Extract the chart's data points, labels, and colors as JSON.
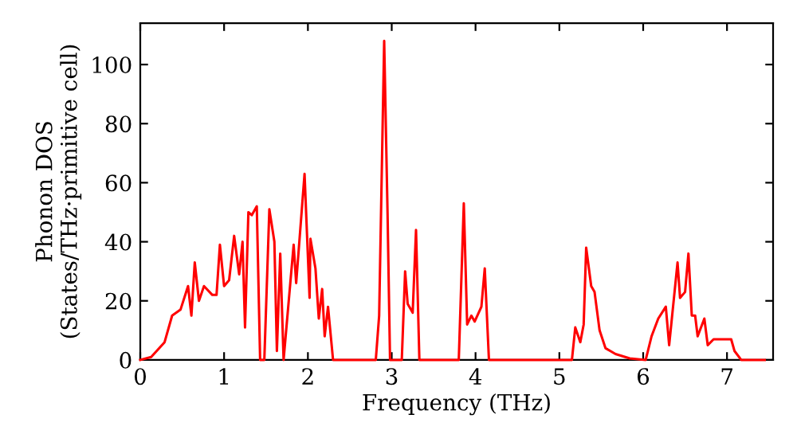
{
  "chart_data": {
    "type": "line",
    "xlabel": "Frequency (THz)",
    "ylabel": "Phonon DOS\n(States/THz·primitive cell)",
    "xlim": [
      0,
      7.55
    ],
    "ylim": [
      0,
      114
    ],
    "xticks": [
      0,
      1,
      2,
      3,
      4,
      5,
      6,
      7
    ],
    "yticks": [
      0,
      20,
      40,
      60,
      80,
      100
    ],
    "grid": false,
    "marker": "none",
    "line_style": "solid",
    "series": [
      {
        "color": "#ff0000",
        "x": [
          0,
          0.13,
          0.29,
          0.38,
          0.48,
          0.57,
          0.61,
          0.65,
          0.7,
          0.76,
          0.86,
          0.91,
          0.95,
          1.0,
          1.06,
          1.12,
          1.18,
          1.22,
          1.25,
          1.29,
          1.33,
          1.39,
          1.43,
          1.48,
          1.54,
          1.6,
          1.63,
          1.67,
          1.71,
          1.79,
          1.83,
          1.86,
          1.96,
          2.02,
          2.03,
          2.09,
          2.13,
          2.17,
          2.2,
          2.24,
          2.3,
          2.81,
          2.85,
          2.91,
          2.95,
          2.98,
          3.12,
          3.16,
          3.19,
          3.25,
          3.29,
          3.33,
          3.8,
          3.86,
          3.9,
          3.95,
          3.99,
          4.07,
          4.11,
          4.16,
          5.15,
          5.19,
          5.25,
          5.29,
          5.32,
          5.38,
          5.42,
          5.48,
          5.55,
          5.67,
          5.84,
          6.03,
          6.1,
          6.18,
          6.27,
          6.31,
          6.41,
          6.44,
          6.5,
          6.54,
          6.58,
          6.62,
          6.65,
          6.73,
          6.77,
          6.84,
          7.05,
          7.09,
          7.17,
          7.45
        ],
        "values": [
          0,
          1,
          6,
          15,
          17,
          25,
          15,
          33,
          20,
          25,
          22,
          22,
          39,
          25,
          27,
          42,
          29,
          40,
          11,
          50,
          49,
          52,
          0,
          0,
          51,
          40,
          3,
          36,
          0,
          26,
          39,
          26,
          63,
          21,
          41,
          31,
          14,
          24,
          8,
          18,
          0,
          0,
          15,
          108,
          50,
          0,
          0,
          30,
          19,
          16,
          44,
          0,
          0,
          53,
          12,
          15,
          13,
          18,
          31,
          0,
          0,
          11,
          6,
          12,
          38,
          25,
          23,
          10,
          4,
          2,
          0.5,
          0,
          8,
          14,
          18,
          5,
          33,
          21,
          23,
          36,
          15,
          15,
          8,
          14,
          5,
          7,
          7,
          3,
          0,
          0
        ]
      }
    ]
  }
}
